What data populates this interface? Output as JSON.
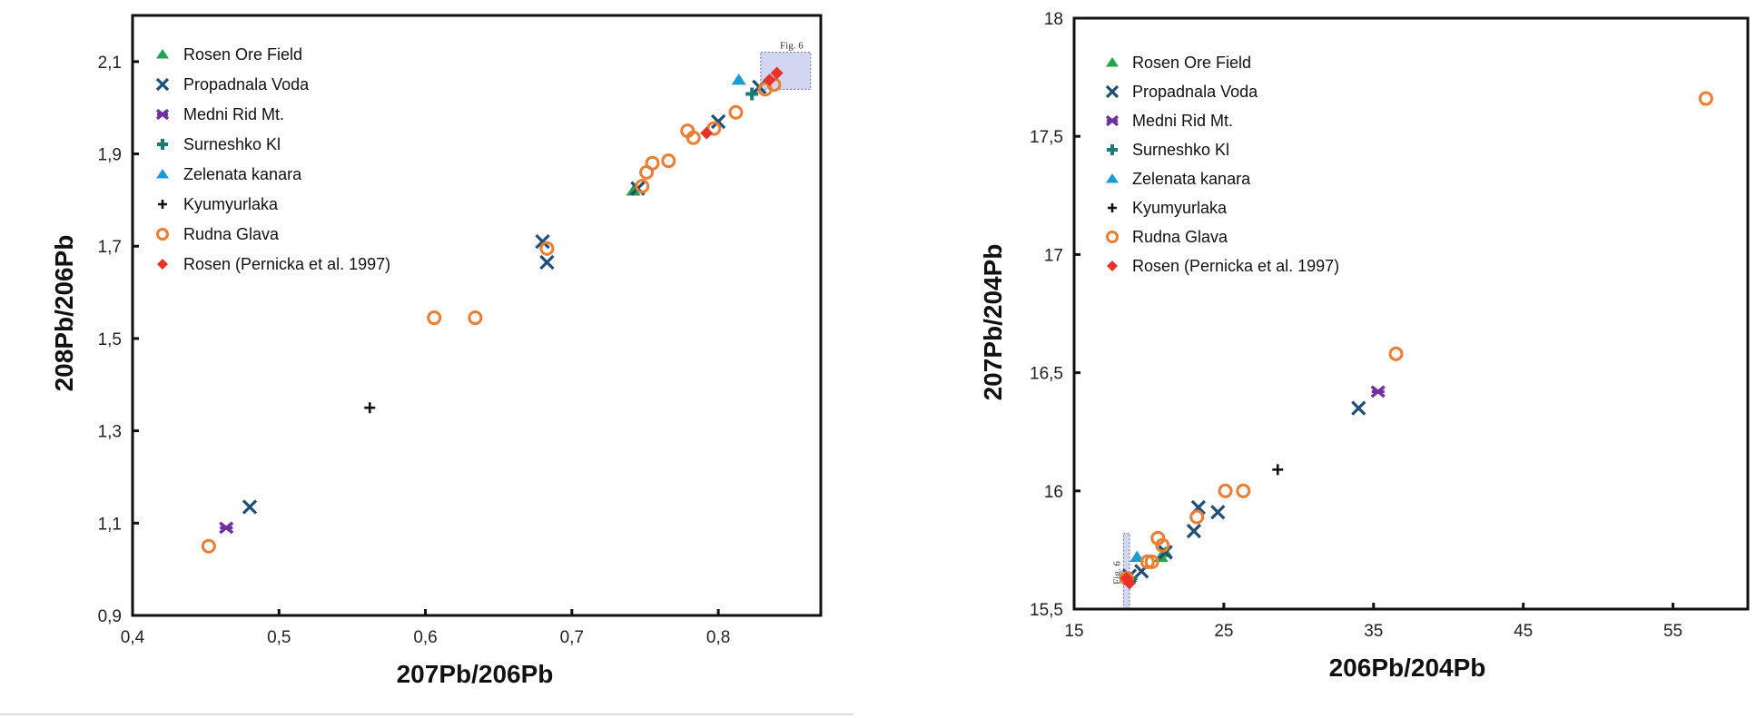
{
  "colors": {
    "Rosen Ore Field": "#1fa64a",
    "Propadnala Voda": "#1f4e79",
    "Medni Rid Mt.": "#7030a0",
    "Surneshko Kl": "#1d7a74",
    "Zelenata kanara": "#1a9bd7",
    "Kyumyurlaka": "#111111",
    "Rudna Glava": "#ed7d31",
    "Rosen (Pernicka et al. 1997)": "#e8322a",
    "inset_box": "#c9cfee"
  },
  "chart_data": [
    {
      "type": "scatter",
      "xlabel": "207Pb/206Pb",
      "ylabel": "208Pb/206Pb",
      "xlim": [
        0.4,
        0.87
      ],
      "ylim": [
        0.9,
        2.2
      ],
      "xticks": [
        "0,4",
        "0,5",
        "0,6",
        "0,7",
        "0,8"
      ],
      "xtick_values": [
        0.4,
        0.5,
        0.6,
        0.7,
        0.8
      ],
      "yticks": [
        "0,9",
        "1,1",
        "1,3",
        "1,5",
        "1,7",
        "1,9",
        "2,1"
      ],
      "ytick_values": [
        0.9,
        1.1,
        1.3,
        1.5,
        1.7,
        1.9,
        2.1
      ],
      "grid": false,
      "legend_position": "top-left",
      "inset": {
        "label": "Fig. 6",
        "x": [
          0.829,
          0.863
        ],
        "y": [
          2.04,
          2.12
        ]
      },
      "series": [
        {
          "name": "Rosen Ore Field",
          "marker": "triangle",
          "points": [
            [
              0.742,
              1.82
            ]
          ]
        },
        {
          "name": "Propadnala Voda",
          "marker": "x",
          "points": [
            [
              0.745,
              1.825
            ],
            [
              0.68,
              1.71
            ],
            [
              0.683,
              1.665
            ],
            [
              0.48,
              1.135
            ],
            [
              0.8,
              1.97
            ],
            [
              0.828,
              2.045
            ]
          ]
        },
        {
          "name": "Medni Rid Mt.",
          "marker": "star",
          "points": [
            [
              0.464,
              1.09
            ]
          ]
        },
        {
          "name": "Surneshko Kl",
          "marker": "plus-bold",
          "points": [
            [
              0.823,
              2.03
            ]
          ]
        },
        {
          "name": "Zelenata kanara",
          "marker": "triangle",
          "points": [
            [
              0.814,
              2.06
            ]
          ]
        },
        {
          "name": "Kyumyurlaka",
          "marker": "plus",
          "points": [
            [
              0.562,
              1.35
            ]
          ]
        },
        {
          "name": "Rudna Glava",
          "marker": "circle",
          "points": [
            [
              0.452,
              1.05
            ],
            [
              0.606,
              1.545
            ],
            [
              0.634,
              1.545
            ],
            [
              0.683,
              1.695
            ],
            [
              0.748,
              1.83
            ],
            [
              0.751,
              1.86
            ],
            [
              0.755,
              1.88
            ],
            [
              0.766,
              1.885
            ],
            [
              0.779,
              1.95
            ],
            [
              0.783,
              1.935
            ],
            [
              0.797,
              1.955
            ],
            [
              0.812,
              1.99
            ],
            [
              0.832,
              2.04
            ],
            [
              0.838,
              2.05
            ]
          ]
        },
        {
          "name": "Rosen (Pernicka et al. 1997)",
          "marker": "diamond",
          "points": [
            [
              0.792,
              1.945
            ],
            [
              0.835,
              2.06
            ],
            [
              0.84,
              2.075
            ]
          ]
        }
      ]
    },
    {
      "type": "scatter",
      "xlabel": "206Pb/204Pb",
      "ylabel": "207Pb/204Pb",
      "xlim": [
        15,
        60
      ],
      "ylim": [
        15.5,
        18
      ],
      "xticks": [
        "15",
        "25",
        "35",
        "45",
        "55"
      ],
      "xtick_values": [
        15,
        25,
        35,
        45,
        55
      ],
      "yticks": [
        "15,5",
        "16",
        "16,5",
        "17",
        "17,5",
        "18"
      ],
      "ytick_values": [
        15.5,
        16,
        16.5,
        17,
        17.5,
        18
      ],
      "grid": false,
      "legend_position": "top-left",
      "inset": {
        "label": "Fig. 6",
        "x": [
          18.3,
          18.7
        ],
        "y": [
          15.5,
          15.82
        ]
      },
      "series": [
        {
          "name": "Rosen Ore Field",
          "marker": "triangle",
          "points": [
            [
              20.8,
              15.72
            ],
            [
              21.1,
              15.74
            ]
          ]
        },
        {
          "name": "Propadnala Voda",
          "marker": "x",
          "points": [
            [
              34.0,
              16.35
            ],
            [
              23.3,
              15.93
            ],
            [
              24.6,
              15.91
            ],
            [
              23.0,
              15.83
            ],
            [
              21.1,
              15.74
            ],
            [
              19.5,
              15.66
            ],
            [
              18.7,
              15.64
            ]
          ]
        },
        {
          "name": "Medni Rid Mt.",
          "marker": "star",
          "points": [
            [
              35.3,
              16.42
            ]
          ]
        },
        {
          "name": "Surneshko Kl",
          "marker": "plus-bold",
          "points": [
            [
              18.8,
              15.63
            ]
          ]
        },
        {
          "name": "Zelenata kanara",
          "marker": "triangle",
          "points": [
            [
              19.2,
              15.72
            ]
          ]
        },
        {
          "name": "Kyumyurlaka",
          "marker": "plus",
          "points": [
            [
              28.6,
              16.09
            ]
          ]
        },
        {
          "name": "Rudna Glava",
          "marker": "circle",
          "points": [
            [
              57.2,
              17.66
            ],
            [
              36.5,
              16.58
            ],
            [
              25.1,
              16.0
            ],
            [
              26.3,
              16.0
            ],
            [
              23.2,
              15.89
            ],
            [
              20.6,
              15.8
            ],
            [
              20.9,
              15.77
            ],
            [
              19.9,
              15.7
            ],
            [
              20.2,
              15.7
            ],
            [
              18.5,
              15.63
            ]
          ]
        },
        {
          "name": "Rosen (Pernicka et al. 1997)",
          "marker": "diamond",
          "points": [
            [
              18.5,
              15.63
            ],
            [
              18.7,
              15.61
            ]
          ]
        }
      ]
    }
  ]
}
